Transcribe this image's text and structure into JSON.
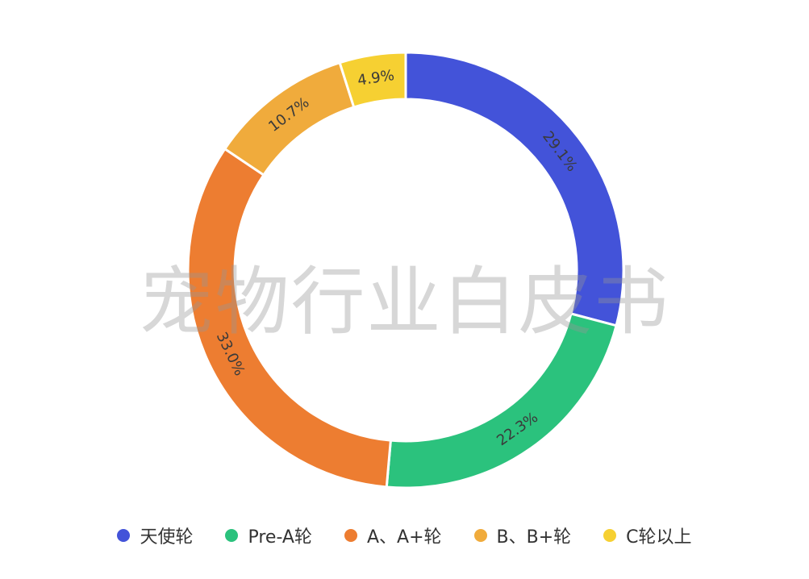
{
  "watermark": "宠物行业白皮书",
  "chart_data": {
    "type": "pie",
    "variant": "donut",
    "title": "",
    "start_angle_deg": 0,
    "direction": "clockwise",
    "legend_placement": "bottom",
    "series": [
      {
        "name": "天使轮",
        "value": 29.1,
        "label": "29.1%",
        "color": "#4353d9"
      },
      {
        "name": "Pre-A轮",
        "value": 22.3,
        "label": "22.3%",
        "color": "#2bc27d"
      },
      {
        "name": "A、A+轮",
        "value": 33.0,
        "label": "33.0%",
        "color": "#ed7d31"
      },
      {
        "name": "B、B+轮",
        "value": 10.7,
        "label": "10.7%",
        "color": "#f0ab3c"
      },
      {
        "name": "C轮以上",
        "value": 4.9,
        "label": "4.9%",
        "color": "#f6d032"
      }
    ]
  }
}
